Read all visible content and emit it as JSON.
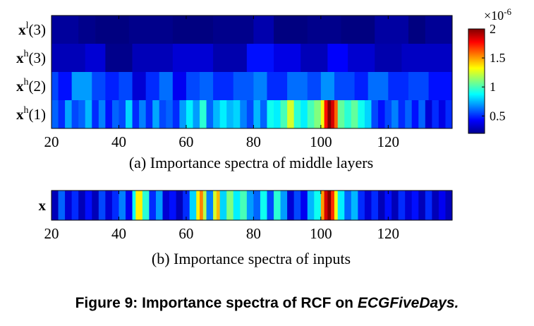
{
  "figure": {
    "caption_prefix": "Figure 9: Importance spectra of RCF on ",
    "caption_dataset": "ECGFiveDays."
  },
  "chart_data": [
    {
      "type": "heatmap",
      "panel": "(a)",
      "caption": "(a)  Importance spectra of middle layers",
      "x_start": 20,
      "x_end": 139,
      "x_ticks": [
        20,
        40,
        60,
        80,
        100,
        120
      ],
      "y_labels": [
        {
          "base": "x",
          "sup": "l",
          "arg": "(3)"
        },
        {
          "base": "x",
          "sup": "h",
          "arg": "(3)"
        },
        {
          "base": "x",
          "sup": "h",
          "arg": "(2)"
        },
        {
          "base": "x",
          "sup": "h",
          "arg": "(1)"
        }
      ],
      "colorbar": {
        "min": 0.2,
        "max": 2,
        "ticks": [
          0.5,
          1,
          1.5,
          2
        ],
        "tick_labels": [
          "0.5",
          "1",
          "1.5",
          "2"
        ],
        "exponent_base": "×10",
        "exponent_power": "-6",
        "colormap": "jet"
      },
      "rows": [
        {
          "name": "xl(3)",
          "segments": [
            [
              20,
              28,
              0.25
            ],
            [
              28,
              33,
              0.22
            ],
            [
              33,
              43,
              0.18
            ],
            [
              43,
              56,
              0.22
            ],
            [
              56,
              68,
              0.18
            ],
            [
              68,
              80,
              0.22
            ],
            [
              80,
              86,
              0.28
            ],
            [
              86,
              96,
              0.2
            ],
            [
              96,
              106,
              0.22
            ],
            [
              106,
              116,
              0.2
            ],
            [
              116,
              126,
              0.26
            ],
            [
              126,
              131,
              0.2
            ],
            [
              131,
              139,
              0.24
            ]
          ]
        },
        {
          "name": "xh(3)",
          "segments": [
            [
              20,
              30,
              0.3
            ],
            [
              30,
              36,
              0.35
            ],
            [
              36,
              44,
              0.22
            ],
            [
              44,
              56,
              0.3
            ],
            [
              56,
              68,
              0.35
            ],
            [
              68,
              78,
              0.28
            ],
            [
              78,
              86,
              0.45
            ],
            [
              86,
              94,
              0.38
            ],
            [
              94,
              102,
              0.3
            ],
            [
              102,
              108,
              0.42
            ],
            [
              108,
              116,
              0.34
            ],
            [
              116,
              124,
              0.28
            ],
            [
              124,
              139,
              0.32
            ]
          ]
        },
        {
          "name": "xh(2)",
          "segments": [
            [
              20,
              22,
              0.55
            ],
            [
              22,
              26,
              0.45
            ],
            [
              26,
              32,
              0.7
            ],
            [
              32,
              36,
              0.55
            ],
            [
              36,
              40,
              0.48
            ],
            [
              40,
              44,
              0.55
            ],
            [
              44,
              48,
              0.35
            ],
            [
              48,
              52,
              0.5
            ],
            [
              52,
              56,
              0.62
            ],
            [
              56,
              60,
              0.4
            ],
            [
              60,
              64,
              0.55
            ],
            [
              64,
              68,
              0.6
            ],
            [
              68,
              74,
              0.5
            ],
            [
              74,
              80,
              0.58
            ],
            [
              80,
              84,
              0.65
            ],
            [
              84,
              90,
              0.5
            ],
            [
              90,
              96,
              0.62
            ],
            [
              96,
              100,
              0.55
            ],
            [
              100,
              104,
              0.68
            ],
            [
              104,
              110,
              0.55
            ],
            [
              110,
              114,
              0.48
            ],
            [
              114,
              120,
              0.62
            ],
            [
              120,
              126,
              0.5
            ],
            [
              126,
              132,
              0.55
            ],
            [
              132,
              139,
              0.45
            ]
          ]
        },
        {
          "name": "xh(1)",
          "segments": [
            [
              20,
              22,
              0.6
            ],
            [
              22,
              24,
              0.5
            ],
            [
              24,
              26,
              0.72
            ],
            [
              26,
              28,
              0.55
            ],
            [
              28,
              30,
              0.6
            ],
            [
              30,
              32,
              0.75
            ],
            [
              32,
              34,
              0.5
            ],
            [
              34,
              36,
              0.65
            ],
            [
              36,
              38,
              0.45
            ],
            [
              38,
              40,
              0.6
            ],
            [
              40,
              42,
              0.55
            ],
            [
              42,
              44,
              0.8
            ],
            [
              44,
              46,
              0.5
            ],
            [
              46,
              48,
              0.65
            ],
            [
              48,
              50,
              0.5
            ],
            [
              50,
              52,
              0.72
            ],
            [
              52,
              54,
              0.55
            ],
            [
              54,
              56,
              0.6
            ],
            [
              56,
              58,
              0.5
            ],
            [
              58,
              60,
              0.7
            ],
            [
              60,
              62,
              0.85
            ],
            [
              62,
              64,
              0.7
            ],
            [
              64,
              66,
              0.95
            ],
            [
              66,
              68,
              0.6
            ],
            [
              68,
              70,
              0.75
            ],
            [
              70,
              72,
              0.85
            ],
            [
              72,
              74,
              0.75
            ],
            [
              74,
              76,
              0.8
            ],
            [
              76,
              78,
              0.65
            ],
            [
              78,
              80,
              0.55
            ],
            [
              80,
              82,
              0.75
            ],
            [
              82,
              84,
              0.6
            ],
            [
              84,
              86,
              0.9
            ],
            [
              86,
              88,
              0.85
            ],
            [
              88,
              90,
              1.0
            ],
            [
              90,
              92,
              1.25
            ],
            [
              92,
              94,
              0.95
            ],
            [
              94,
              96,
              0.85
            ],
            [
              96,
              98,
              1.0
            ],
            [
              98,
              100,
              1.1
            ],
            [
              100,
              101,
              1.3
            ],
            [
              101,
              102,
              1.75
            ],
            [
              102,
              103,
              2.0
            ],
            [
              103,
              104,
              1.85
            ],
            [
              104,
              105,
              1.6
            ],
            [
              105,
              107,
              1.05
            ],
            [
              107,
              109,
              0.95
            ],
            [
              109,
              111,
              1.05
            ],
            [
              111,
              113,
              0.9
            ],
            [
              113,
              115,
              0.8
            ],
            [
              115,
              117,
              0.55
            ],
            [
              117,
              119,
              0.45
            ],
            [
              119,
              121,
              0.55
            ],
            [
              121,
              123,
              0.65
            ],
            [
              123,
              125,
              0.5
            ],
            [
              125,
              127,
              0.6
            ],
            [
              127,
              129,
              0.45
            ],
            [
              129,
              131,
              0.6
            ],
            [
              131,
              133,
              0.35
            ],
            [
              133,
              135,
              0.5
            ],
            [
              135,
              137,
              0.38
            ],
            [
              137,
              139,
              0.5
            ]
          ]
        }
      ]
    },
    {
      "type": "heatmap",
      "panel": "(b)",
      "caption": "(b) Importance spectra of inputs",
      "x_start": 20,
      "x_end": 139,
      "x_ticks": [
        20,
        40,
        60,
        80,
        100,
        120
      ],
      "y_labels": [
        {
          "base": "x"
        }
      ],
      "rows": [
        {
          "name": "x",
          "segments": [
            [
              20,
              22,
              0.3
            ],
            [
              22,
              24,
              0.6
            ],
            [
              24,
              26,
              0.35
            ],
            [
              26,
              28,
              0.5
            ],
            [
              28,
              30,
              0.3
            ],
            [
              30,
              32,
              0.45
            ],
            [
              32,
              34,
              0.3
            ],
            [
              34,
              36,
              0.55
            ],
            [
              36,
              38,
              0.35
            ],
            [
              38,
              40,
              0.5
            ],
            [
              40,
              42,
              0.65
            ],
            [
              42,
              44,
              0.4
            ],
            [
              44,
              45,
              0.9
            ],
            [
              45,
              47,
              1.35
            ],
            [
              47,
              49,
              0.95
            ],
            [
              49,
              51,
              0.5
            ],
            [
              51,
              53,
              0.7
            ],
            [
              53,
              55,
              0.35
            ],
            [
              55,
              57,
              0.45
            ],
            [
              57,
              59,
              0.3
            ],
            [
              59,
              61,
              0.5
            ],
            [
              61,
              63,
              0.8
            ],
            [
              63,
              64,
              1.35
            ],
            [
              64,
              65,
              1.55
            ],
            [
              65,
              66,
              1.2
            ],
            [
              66,
              68,
              0.65
            ],
            [
              68,
              69,
              1.25
            ],
            [
              69,
              70,
              1.45
            ],
            [
              70,
              72,
              0.8
            ],
            [
              72,
              74,
              1.1
            ],
            [
              74,
              76,
              0.85
            ],
            [
              76,
              78,
              1.0
            ],
            [
              78,
              80,
              0.7
            ],
            [
              80,
              82,
              0.6
            ],
            [
              82,
              84,
              0.9
            ],
            [
              84,
              86,
              0.55
            ],
            [
              86,
              88,
              0.95
            ],
            [
              88,
              90,
              0.7
            ],
            [
              90,
              92,
              0.35
            ],
            [
              92,
              94,
              0.55
            ],
            [
              94,
              96,
              0.4
            ],
            [
              96,
              98,
              0.75
            ],
            [
              98,
              100,
              0.9
            ],
            [
              100,
              101,
              1.5
            ],
            [
              101,
              102,
              1.85
            ],
            [
              102,
              103,
              2.0
            ],
            [
              103,
              104,
              1.7
            ],
            [
              104,
              105,
              1.3
            ],
            [
              105,
              107,
              0.85
            ],
            [
              107,
              109,
              0.6
            ],
            [
              109,
              111,
              0.75
            ],
            [
              111,
              113,
              0.5
            ],
            [
              113,
              115,
              0.35
            ],
            [
              115,
              117,
              0.5
            ],
            [
              117,
              119,
              0.3
            ],
            [
              119,
              121,
              0.45
            ],
            [
              121,
              123,
              0.3
            ],
            [
              123,
              125,
              0.5
            ],
            [
              125,
              127,
              0.35
            ],
            [
              127,
              129,
              0.45
            ],
            [
              129,
              131,
              0.3
            ],
            [
              131,
              133,
              0.5
            ],
            [
              133,
              135,
              0.3
            ],
            [
              135,
              137,
              0.4
            ],
            [
              137,
              139,
              0.3
            ]
          ]
        }
      ]
    }
  ]
}
